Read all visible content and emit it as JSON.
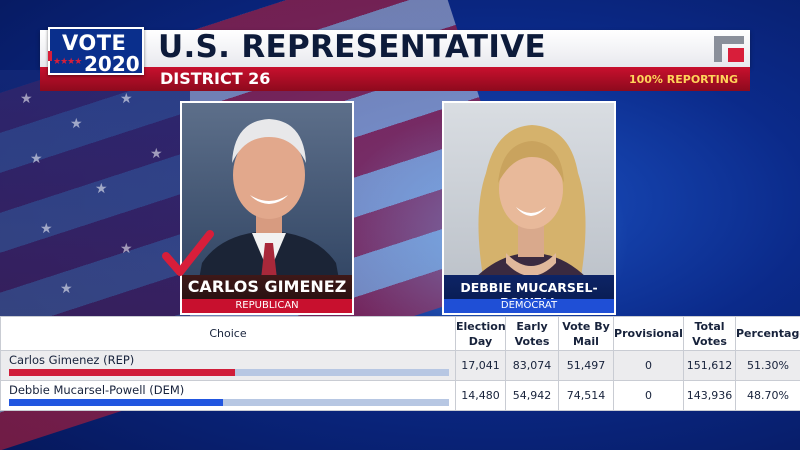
{
  "header": {
    "vote_word": "VOTE",
    "vote_year": "2020",
    "race_title": "U.S. REPRESENTATIVE",
    "district": "DISTRICT 26",
    "reporting": "100% REPORTING"
  },
  "colors": {
    "republican_red": "#c8102e",
    "democrat_blue": "#1f4fd6",
    "checkmark_red": "#d81e3a"
  },
  "candidates": [
    {
      "name": "CARLOS GIMENEZ",
      "party": "REPUBLICAN",
      "winner": true,
      "icon": "checkmark-icon"
    },
    {
      "name": "DEBBIE MUCARSEL-POWELL",
      "party": "DEMOCRAT",
      "winner": false
    }
  ],
  "table": {
    "headers": [
      "Choice",
      "Election Day",
      "Early Votes",
      "Vote By Mail",
      "Provisional",
      "Total Votes",
      "Percentage"
    ],
    "rows": [
      {
        "choice": "Carlos Gimenez (REP)",
        "election_day": "17,041",
        "early": "83,074",
        "mail": "51,497",
        "provisional": "0",
        "total": "151,612",
        "percentage": "51.30%",
        "share": 0.513
      },
      {
        "choice": "Debbie Mucarsel-Powell (DEM)",
        "election_day": "14,480",
        "early": "54,942",
        "mail": "74,514",
        "provisional": "0",
        "total": "143,936",
        "percentage": "48.70%",
        "share": 0.487
      }
    ]
  }
}
